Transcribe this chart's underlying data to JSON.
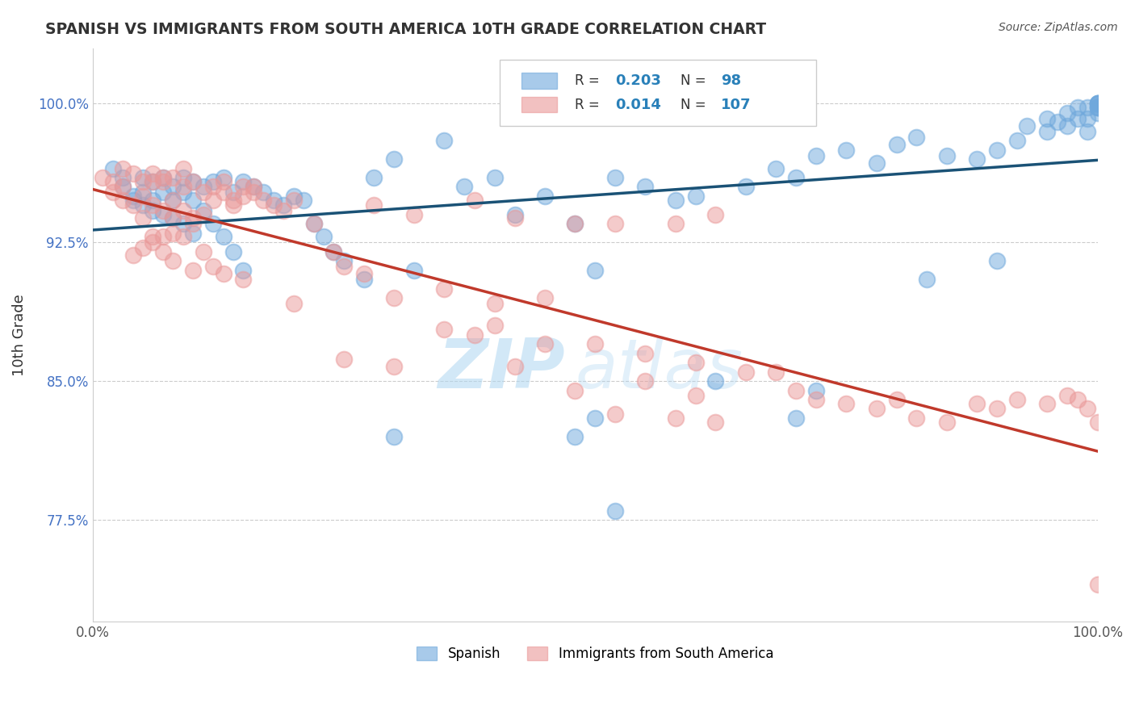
{
  "title": "SPANISH VS IMMIGRANTS FROM SOUTH AMERICA 10TH GRADE CORRELATION CHART",
  "source": "Source: ZipAtlas.com",
  "ylabel": "10th Grade",
  "yticks": [
    0.775,
    0.85,
    0.925,
    1.0
  ],
  "ytick_labels": [
    "77.5%",
    "85.0%",
    "92.5%",
    "100.0%"
  ],
  "xlim": [
    0.0,
    1.0
  ],
  "ylim": [
    0.72,
    1.03
  ],
  "blue_R": 0.203,
  "blue_N": 98,
  "pink_R": 0.014,
  "pink_N": 107,
  "blue_color": "#6fa8dc",
  "pink_color": "#ea9999",
  "blue_line_color": "#1a5276",
  "pink_line_color": "#c0392b",
  "legend_label_blue": "Spanish",
  "legend_label_pink": "Immigrants from South America",
  "watermark_zip": "ZIP",
  "watermark_atlas": "atlas",
  "background_color": "#ffffff",
  "blue_scatter_x": [
    0.02,
    0.03,
    0.03,
    0.04,
    0.04,
    0.05,
    0.05,
    0.05,
    0.06,
    0.06,
    0.06,
    0.07,
    0.07,
    0.07,
    0.08,
    0.08,
    0.08,
    0.09,
    0.09,
    0.09,
    0.1,
    0.1,
    0.1,
    0.11,
    0.11,
    0.12,
    0.12,
    0.13,
    0.13,
    0.14,
    0.14,
    0.15,
    0.15,
    0.16,
    0.17,
    0.18,
    0.19,
    0.2,
    0.21,
    0.22,
    0.23,
    0.24,
    0.25,
    0.27,
    0.28,
    0.3,
    0.32,
    0.35,
    0.37,
    0.4,
    0.42,
    0.45,
    0.48,
    0.5,
    0.52,
    0.55,
    0.58,
    0.6,
    0.65,
    0.68,
    0.7,
    0.72,
    0.75,
    0.78,
    0.8,
    0.82,
    0.85,
    0.88,
    0.9,
    0.92,
    0.93,
    0.95,
    0.95,
    0.96,
    0.97,
    0.97,
    0.98,
    0.98,
    0.99,
    0.99,
    0.99,
    1.0,
    1.0,
    1.0,
    1.0,
    1.0,
    1.0,
    1.0,
    1.0,
    0.48,
    0.5,
    0.3,
    0.62,
    0.7,
    0.72,
    0.52,
    0.9,
    0.83
  ],
  "blue_scatter_y": [
    0.965,
    0.96,
    0.955,
    0.95,
    0.948,
    0.96,
    0.945,
    0.952,
    0.958,
    0.942,
    0.948,
    0.96,
    0.952,
    0.94,
    0.955,
    0.948,
    0.938,
    0.96,
    0.952,
    0.935,
    0.958,
    0.948,
    0.93,
    0.955,
    0.942,
    0.958,
    0.935,
    0.96,
    0.928,
    0.952,
    0.92,
    0.958,
    0.91,
    0.955,
    0.952,
    0.948,
    0.945,
    0.95,
    0.948,
    0.935,
    0.928,
    0.92,
    0.915,
    0.905,
    0.96,
    0.97,
    0.91,
    0.98,
    0.955,
    0.96,
    0.94,
    0.95,
    0.935,
    0.91,
    0.96,
    0.955,
    0.948,
    0.95,
    0.955,
    0.965,
    0.96,
    0.972,
    0.975,
    0.968,
    0.978,
    0.982,
    0.972,
    0.97,
    0.975,
    0.98,
    0.988,
    0.992,
    0.985,
    0.99,
    0.995,
    0.988,
    0.992,
    0.998,
    0.985,
    0.992,
    0.998,
    1.0,
    0.998,
    0.995,
    0.998,
    1.0,
    1.0,
    1.0,
    0.998,
    0.82,
    0.83,
    0.82,
    0.85,
    0.83,
    0.845,
    0.78,
    0.915,
    0.905
  ],
  "pink_scatter_x": [
    0.01,
    0.02,
    0.02,
    0.03,
    0.03,
    0.03,
    0.04,
    0.04,
    0.05,
    0.05,
    0.05,
    0.06,
    0.06,
    0.06,
    0.07,
    0.07,
    0.07,
    0.08,
    0.08,
    0.08,
    0.09,
    0.09,
    0.1,
    0.1,
    0.1,
    0.11,
    0.11,
    0.12,
    0.12,
    0.13,
    0.13,
    0.14,
    0.15,
    0.15,
    0.16,
    0.17,
    0.18,
    0.19,
    0.2,
    0.22,
    0.24,
    0.25,
    0.27,
    0.28,
    0.3,
    0.32,
    0.35,
    0.38,
    0.4,
    0.42,
    0.45,
    0.48,
    0.5,
    0.52,
    0.55,
    0.58,
    0.6,
    0.62,
    0.65,
    0.68,
    0.4,
    0.45,
    0.3,
    0.35,
    0.2,
    0.25,
    0.55,
    0.6,
    0.38,
    0.42,
    0.48,
    0.52,
    0.58,
    0.62,
    0.7,
    0.72,
    0.75,
    0.78,
    0.8,
    0.82,
    0.85,
    0.88,
    0.9,
    0.92,
    0.95,
    0.97,
    0.98,
    0.99,
    1.0,
    1.0,
    0.1,
    0.12,
    0.08,
    0.14,
    0.07,
    0.09,
    0.06,
    0.11,
    0.05,
    0.04,
    0.15,
    0.13,
    0.16,
    0.06,
    0.07,
    0.08,
    0.09
  ],
  "pink_scatter_y": [
    0.96,
    0.958,
    0.952,
    0.965,
    0.955,
    0.948,
    0.962,
    0.945,
    0.958,
    0.95,
    0.938,
    0.962,
    0.945,
    0.928,
    0.958,
    0.942,
    0.92,
    0.96,
    0.938,
    0.915,
    0.955,
    0.928,
    0.958,
    0.935,
    0.91,
    0.952,
    0.92,
    0.955,
    0.912,
    0.958,
    0.908,
    0.948,
    0.955,
    0.905,
    0.952,
    0.948,
    0.945,
    0.942,
    0.948,
    0.935,
    0.92,
    0.912,
    0.908,
    0.945,
    0.895,
    0.94,
    0.9,
    0.948,
    0.892,
    0.938,
    0.895,
    0.935,
    0.87,
    0.935,
    0.865,
    0.935,
    0.86,
    0.94,
    0.855,
    0.855,
    0.88,
    0.87,
    0.858,
    0.878,
    0.892,
    0.862,
    0.85,
    0.842,
    0.875,
    0.858,
    0.845,
    0.832,
    0.83,
    0.828,
    0.845,
    0.84,
    0.838,
    0.835,
    0.84,
    0.83,
    0.828,
    0.838,
    0.835,
    0.84,
    0.838,
    0.842,
    0.84,
    0.835,
    0.828,
    0.74,
    0.938,
    0.948,
    0.93,
    0.945,
    0.928,
    0.942,
    0.925,
    0.94,
    0.922,
    0.918,
    0.95,
    0.952,
    0.955,
    0.958,
    0.96,
    0.948,
    0.965
  ]
}
